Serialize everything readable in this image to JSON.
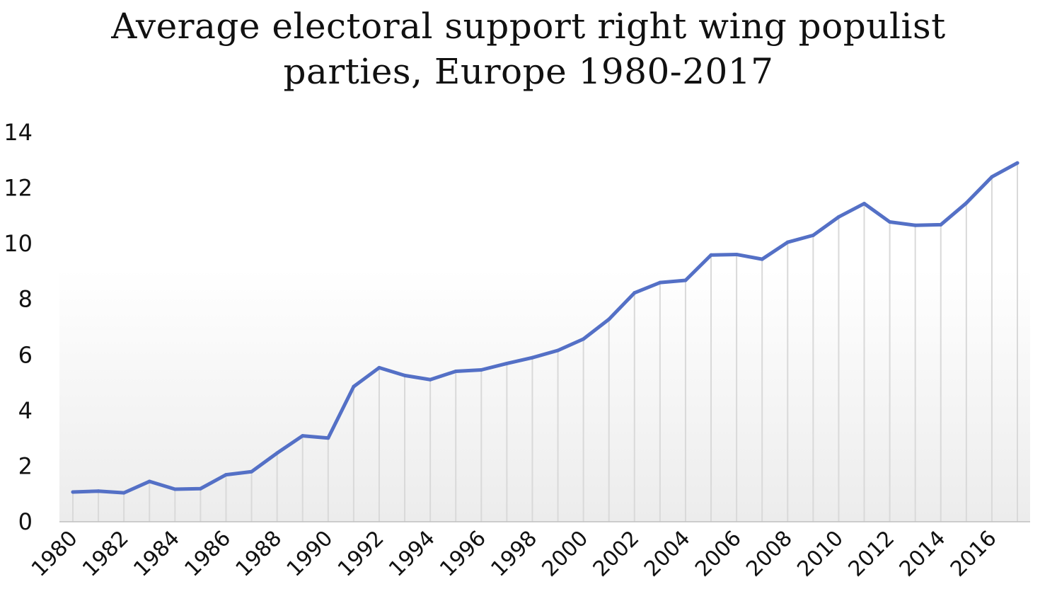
{
  "chart_data": {
    "type": "line",
    "title_lines": [
      "Average electoral support right wing populist",
      "parties, Europe 1980-2017"
    ],
    "xlabel": "",
    "ylabel": "",
    "ylim": [
      0,
      14
    ],
    "y_ticks": [
      "0",
      "2",
      "4",
      "6",
      "8",
      "10",
      "12",
      "14"
    ],
    "x_tick_labels": [
      "1980",
      "1982",
      "1984",
      "1986",
      "1988",
      "1990",
      "1992",
      "1994",
      "1996",
      "1998",
      "2000",
      "2002",
      "2004",
      "2006",
      "2008",
      "2010",
      "2012",
      "2014",
      "2016"
    ],
    "grid": "vertical drop lines at each year",
    "legend": "none",
    "colors": {
      "line": "#5470c6",
      "droplines": "#d9d9d9",
      "axis": "#bfbfbf",
      "text": "#111111"
    },
    "x": [
      1980,
      1981,
      1982,
      1983,
      1984,
      1985,
      1986,
      1987,
      1988,
      1989,
      1990,
      1991,
      1992,
      1993,
      1994,
      1995,
      1996,
      1997,
      1998,
      1999,
      2000,
      2001,
      2002,
      2003,
      2004,
      2005,
      2006,
      2007,
      2008,
      2009,
      2010,
      2011,
      2012,
      2013,
      2014,
      2015,
      2016,
      2017
    ],
    "series": [
      {
        "values": [
          1.07,
          1.1,
          1.04,
          1.45,
          1.17,
          1.19,
          1.69,
          1.8,
          2.47,
          3.09,
          3.01,
          4.86,
          5.54,
          5.26,
          5.11,
          5.41,
          5.46,
          5.69,
          5.9,
          6.16,
          6.57,
          7.28,
          8.23,
          8.6,
          8.68,
          9.59,
          9.61,
          9.44,
          10.05,
          10.3,
          10.96,
          11.44,
          10.78,
          10.66,
          10.68,
          11.46,
          12.4,
          12.9
        ]
      }
    ]
  }
}
